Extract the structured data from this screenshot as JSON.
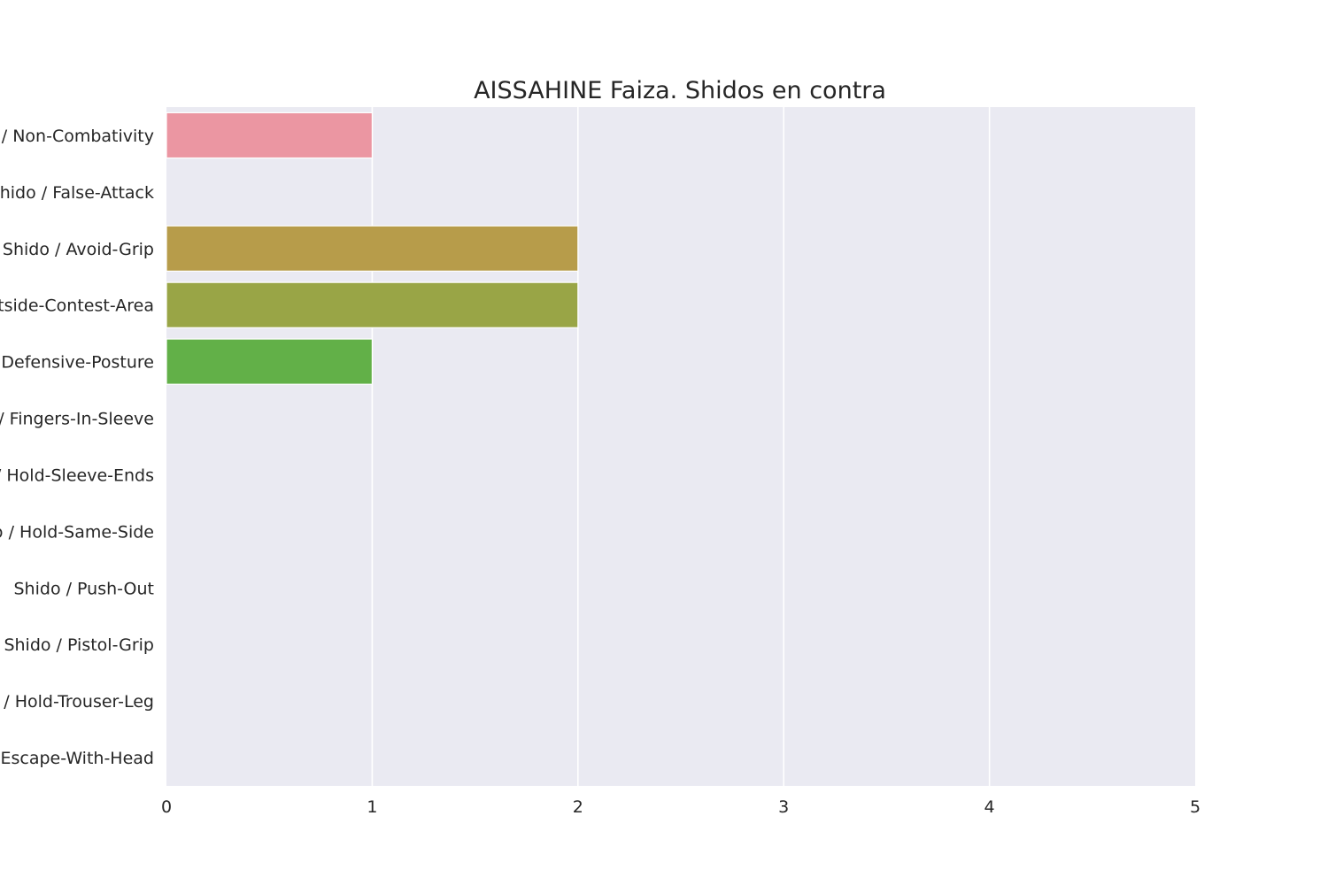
{
  "chart_data": {
    "type": "bar",
    "orientation": "horizontal",
    "title": "AISSAHINE Faiza. Shidos en contra",
    "xlabel": "",
    "ylabel": "",
    "xlim": [
      0,
      5
    ],
    "x_ticks": [
      "0",
      "1",
      "2",
      "3",
      "4",
      "5"
    ],
    "grid": true,
    "categories": [
      "Shido / Non-Combativity",
      "Shido / False-Attack",
      "Shido / Avoid-Grip",
      "Shido / Outside-Contest-Area",
      "Shido / Defensive-Posture",
      "Shido / Fingers-In-Sleeve",
      "Shido / Hold-Sleeve-Ends",
      "Shido / Hold-Same-Side",
      "Shido / Push-Out",
      "Shido / Pistol-Grip",
      "Shido / Hold-Trouser-Leg",
      "Shido / Escape-With-Head"
    ],
    "values": [
      1,
      0,
      2,
      2,
      1,
      0,
      0,
      0,
      0,
      0,
      0,
      0
    ],
    "colors": [
      "#eb96a2",
      "#dea08e",
      "#b79c4a",
      "#99a546",
      "#62b048",
      "#4fb08a",
      "#4fb0a0",
      "#4fb0bc",
      "#6aa6e0",
      "#a99ce8",
      "#d68ee0",
      "#eb8ec2"
    ],
    "plot_background": "#eaeaf2"
  }
}
